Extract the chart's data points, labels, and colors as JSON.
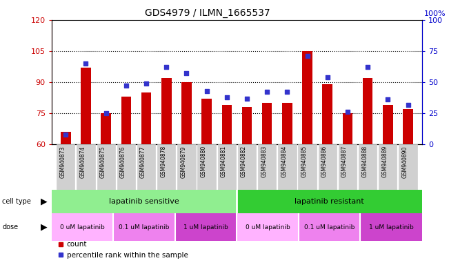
{
  "title": "GDS4979 / ILMN_1665537",
  "samples": [
    "GSM940873",
    "GSM940874",
    "GSM940875",
    "GSM940876",
    "GSM940877",
    "GSM940878",
    "GSM940879",
    "GSM940880",
    "GSM940881",
    "GSM940882",
    "GSM940883",
    "GSM940884",
    "GSM940885",
    "GSM940886",
    "GSM940887",
    "GSM940888",
    "GSM940889",
    "GSM940890"
  ],
  "counts": [
    66,
    97,
    75,
    83,
    85,
    92,
    90,
    82,
    79,
    78,
    80,
    80,
    105,
    89,
    75,
    92,
    79,
    77
  ],
  "percentiles": [
    8,
    65,
    25,
    47,
    49,
    62,
    57,
    43,
    38,
    37,
    42,
    42,
    71,
    54,
    26,
    62,
    36,
    32
  ],
  "ylim_left": [
    60,
    120
  ],
  "ylim_right": [
    0,
    100
  ],
  "yticks_left": [
    60,
    75,
    90,
    105,
    120
  ],
  "yticks_right": [
    0,
    25,
    50,
    75,
    100
  ],
  "bar_color": "#cc0000",
  "dot_color": "#3333cc",
  "bar_width": 0.5,
  "cell_sensitive_color": "#90ee90",
  "cell_resistant_color": "#33cc33",
  "dose_colors": [
    "#ffb3ff",
    "#ee82ee",
    "#cc44cc",
    "#ffb3ff",
    "#ee82ee",
    "#cc44cc"
  ],
  "dose_labels": [
    "0 uM lapatinib",
    "0.1 uM lapatinib",
    "1 uM lapatinib",
    "0 uM lapatinib",
    "0.1 uM lapatinib",
    "1 uM lapatinib"
  ],
  "legend_count_label": "count",
  "legend_pct_label": "percentile rank within the sample",
  "plot_bg": "#ffffff",
  "xtick_area_color": "#d0d0d0"
}
